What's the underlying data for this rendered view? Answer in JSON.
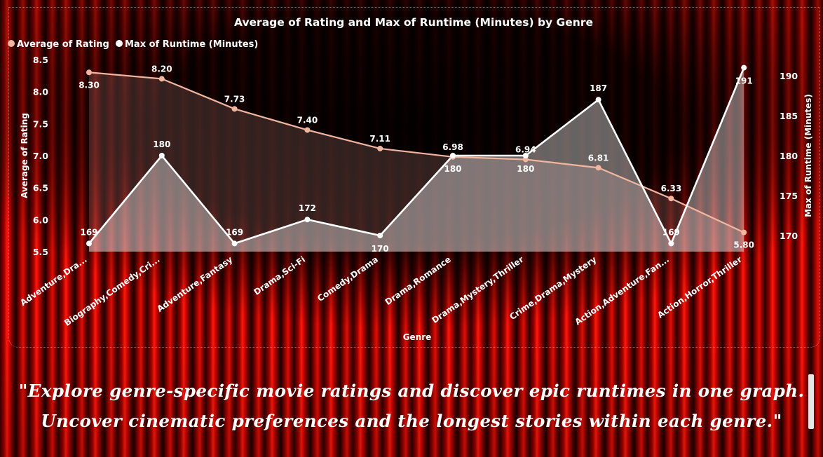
{
  "chart_data": {
    "type": "line",
    "title": "Average of Rating and Max of Runtime (Minutes) by Genre",
    "xlabel": "Genre",
    "ylabel_left": "Average of Rating",
    "ylabel_right": "Max of Runtime (Minutes)",
    "categories": [
      "Adventure,Dra...",
      "Biography,Comedy,Cri...",
      "Adventure,Fantasy",
      "Drama,Sci-Fi",
      "Comedy,Drama",
      "Drama,Romance",
      "Drama,Mystery,Thriller",
      "Crime,Drama,Mystery",
      "Action,Adventure,Fan...",
      "Action,Horror,Thriller"
    ],
    "series": [
      {
        "name": "Average of Rating",
        "axis": "left",
        "color": "#f2b5a0",
        "values": [
          8.3,
          8.2,
          7.73,
          7.4,
          7.11,
          6.98,
          6.94,
          6.81,
          6.33,
          5.8
        ],
        "labels": [
          "8.30",
          "8.20",
          "7.73",
          "7.40",
          "7.11",
          "6.98",
          "6.94",
          "6.81",
          "6.33",
          "5.80"
        ]
      },
      {
        "name": "Max of Runtime (Minutes)",
        "axis": "right",
        "color": "#ffffff",
        "values": [
          169,
          180,
          169,
          172,
          170,
          180,
          180,
          187,
          169,
          191
        ],
        "labels": [
          "169",
          "180",
          "169",
          "172",
          "170",
          "180",
          "180",
          "187",
          "169",
          "191"
        ]
      }
    ],
    "ylim_left": [
      5.5,
      8.5
    ],
    "yticks_left": [
      "5.5",
      "6.0",
      "6.5",
      "7.0",
      "7.5",
      "8.0",
      "8.5"
    ],
    "ylim_right": [
      168962,
      192.07
    ],
    "yticks_right": [
      "170",
      "175",
      "180",
      "185",
      "190"
    ],
    "legend_position": "top-left",
    "grid": false
  },
  "quote": {
    "line1": "\"Explore genre-specific movie ratings and discover epic runtimes in one graph.",
    "line2": "Uncover cinematic preferences and the longest stories within each genre.\""
  }
}
